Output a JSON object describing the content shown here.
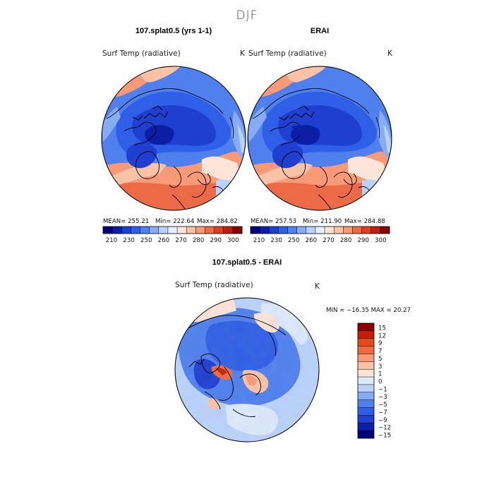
{
  "page": {
    "title": "DJF"
  },
  "colors": {
    "abs": [
      "#00007f",
      "#0a1ea6",
      "#1e3fd0",
      "#2f5fe6",
      "#4f80ee",
      "#86acf5",
      "#bad2fb",
      "#e5f0fe",
      "#fde5d8",
      "#fbc2a6",
      "#f89a78",
      "#ed6a47",
      "#de3e22",
      "#bd1e0e",
      "#8a0000"
    ],
    "diff": [
      "#00007f",
      "#0a1ea6",
      "#1e3fd0",
      "#2f5fe6",
      "#4f80ee",
      "#86acf5",
      "#bad2fb",
      "#dce9fd",
      "#fde3d5",
      "#fbc2a6",
      "#f89a78",
      "#ef6a3f",
      "#e14b1a",
      "#c62000",
      "#8a0000"
    ],
    "coast": "#000000"
  },
  "chart_data": [
    {
      "type": "heatmap",
      "projection": "north-polar-stereographic",
      "title": "107.splat0.5 (yrs 1-1)",
      "variable": "Surf Temp (radiative)",
      "units": "K",
      "stats": {
        "mean_label": "MEAN=",
        "mean": "255.21",
        "min_label": "Min=",
        "min": "222.64",
        "max_label": "Max=",
        "max": "284.82"
      },
      "colorbar_ticks": [
        "210",
        "230",
        "250",
        "260",
        "270",
        "280",
        "290",
        "300"
      ]
    },
    {
      "type": "heatmap",
      "projection": "north-polar-stereographic",
      "title": "ERAI",
      "variable": "Surf Temp (radiative)",
      "units": "K",
      "stats": {
        "mean_label": "MEAN=",
        "mean": "257.53",
        "min_label": "Min=",
        "min": "211.90",
        "max_label": "Max=",
        "max": "284.88"
      },
      "colorbar_ticks": [
        "210",
        "230",
        "250",
        "260",
        "270",
        "280",
        "290",
        "300"
      ]
    },
    {
      "type": "heatmap",
      "projection": "north-polar-stereographic",
      "title": "107.splat0.5 - ERAI",
      "variable": "Surf Temp (radiative)",
      "units": "K",
      "stats_text": "MIN = −16.35 MAX =  20.27",
      "colorbar_ticks": [
        "15",
        "12",
        "9",
        "7",
        "5",
        "3",
        "1",
        "0",
        "−1",
        "−3",
        "−5",
        "−7",
        "−9",
        "−12",
        "−15"
      ]
    }
  ]
}
